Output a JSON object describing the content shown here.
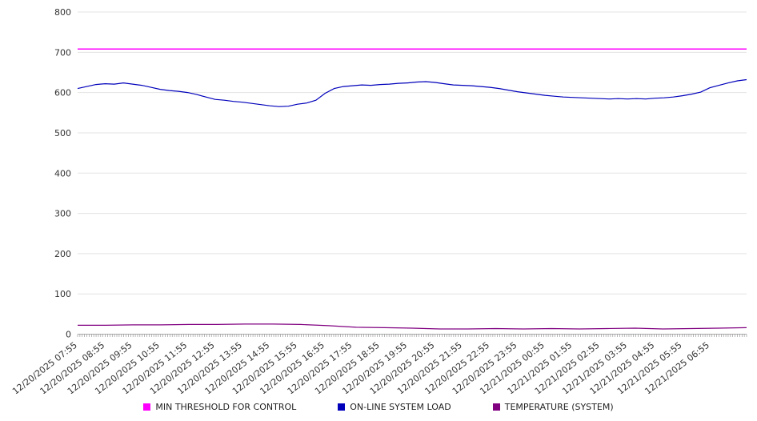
{
  "chart_data": {
    "type": "line",
    "title": "",
    "xlabel": "",
    "ylabel": "",
    "ylim": [
      0,
      800
    ],
    "yticks": [
      0,
      100,
      200,
      300,
      400,
      500,
      600,
      700,
      800
    ],
    "grid": true,
    "legend_position": "bottom",
    "x_label_step": 3,
    "x_labels": [
      "12/20/2025 07:55",
      "12/20/2025 08:55",
      "12/20/2025 09:55",
      "12/20/2025 10:55",
      "12/20/2025 11:55",
      "12/20/2025 12:55",
      "12/20/2025 13:55",
      "12/20/2025 14:55",
      "12/20/2025 15:55",
      "12/20/2025 16:55",
      "12/20/2025 17:55",
      "12/20/2025 18:55",
      "12/20/2025 19:55",
      "12/20/2025 20:55",
      "12/20/2025 21:55",
      "12/20/2025 22:55",
      "12/20/2025 23:55",
      "12/21/2025 00:55",
      "12/21/2025 01:55",
      "12/21/2025 02:55",
      "12/21/2025 03:55",
      "12/21/2025 04:55",
      "12/21/2025 05:55",
      "12/21/2025 06:55"
    ],
    "series": [
      {
        "name": "MIN THRESHOLD FOR CONTROL",
        "color": "#ff00ff",
        "width": 1.5,
        "values": [
          708,
          708
        ]
      },
      {
        "name": "ON-LINE SYSTEM LOAD",
        "color": "#0000bb",
        "width": 1.2,
        "values": [
          610,
          615,
          620,
          622,
          621,
          624,
          621,
          618,
          613,
          608,
          605,
          603,
          600,
          595,
          589,
          583,
          581,
          578,
          576,
          573,
          570,
          567,
          565,
          566,
          571,
          574,
          581,
          598,
          610,
          615,
          617,
          619,
          618,
          620,
          621,
          623,
          624,
          626,
          627,
          625,
          622,
          619,
          618,
          617,
          615,
          613,
          610,
          606,
          602,
          599,
          596,
          593,
          591,
          589,
          588,
          587,
          586,
          585,
          584,
          585,
          584,
          585,
          584,
          586,
          587,
          589,
          592,
          596,
          601,
          612,
          618,
          624,
          629,
          632
        ]
      },
      {
        "name": "TEMPERATURE (SYSTEM)",
        "color": "#800080",
        "width": 1.2,
        "values": [
          22,
          22,
          23,
          23,
          24,
          24,
          25,
          25,
          24,
          21,
          17,
          16,
          15,
          13,
          13,
          14,
          13,
          14,
          13,
          14,
          15,
          13,
          14,
          15,
          16
        ]
      }
    ]
  }
}
